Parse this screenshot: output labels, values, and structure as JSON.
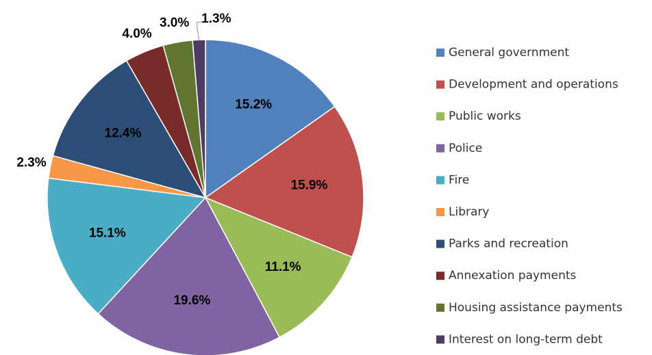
{
  "chart_data": {
    "type": "pie",
    "categories": [
      "General government",
      "Development and operations",
      "Public works",
      "Police",
      "Fire",
      "Library",
      "Parks and recreation",
      "Annexation payments",
      "Housing assistance payments",
      "Interest on long-term debt"
    ],
    "values": [
      15.2,
      15.9,
      11.1,
      19.6,
      15.1,
      2.3,
      12.4,
      4.0,
      3.0,
      1.3
    ],
    "value_labels": [
      "15.2%",
      "15.9%",
      "11.1%",
      "19.6%",
      "15.1%",
      "2.3%",
      "12.4%",
      "4.0%",
      "3.0%",
      "1.3%"
    ],
    "colors": [
      "#4f81bd",
      "#c0504d",
      "#9bbb59",
      "#8064a2",
      "#4bacc6",
      "#f79646",
      "#2c4d75",
      "#772c2a",
      "#5f7530",
      "#4d3b62"
    ],
    "legend": "right"
  }
}
